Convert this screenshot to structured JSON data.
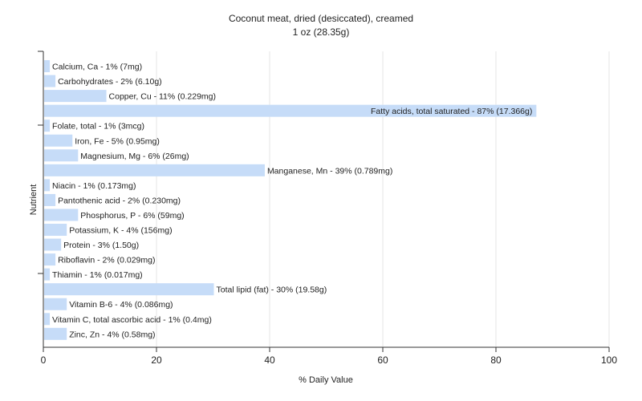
{
  "chart_data": {
    "type": "bar",
    "orientation": "horizontal",
    "title": "Coconut meat, dried (desiccated), creamed",
    "subtitle": "1 oz (28.35g)",
    "xlabel": "% Daily Value",
    "ylabel": "Nutrient",
    "xlim": [
      0,
      100
    ],
    "xticks": [
      0,
      20,
      40,
      60,
      80,
      100
    ],
    "grid": true,
    "bar_color": "#c6dcf8",
    "categories": [
      "Calcium, Ca",
      "Carbohydrates",
      "Copper, Cu",
      "Fatty acids, total saturated",
      "Folate, total",
      "Iron, Fe",
      "Magnesium, Mg",
      "Manganese, Mn",
      "Niacin",
      "Pantothenic acid",
      "Phosphorus, P",
      "Potassium, K",
      "Protein",
      "Riboflavin",
      "Thiamin",
      "Total lipid (fat)",
      "Vitamin B-6",
      "Vitamin C, total ascorbic acid",
      "Zinc, Zn"
    ],
    "values": [
      1,
      2,
      11,
      87,
      1,
      5,
      6,
      39,
      1,
      2,
      6,
      4,
      3,
      2,
      1,
      30,
      4,
      1,
      4
    ],
    "labels": [
      "Calcium, Ca - 1% (7mg)",
      "Carbohydrates - 2% (6.10g)",
      "Copper, Cu - 11% (0.229mg)",
      "Fatty acids, total saturated - 87% (17.366g)",
      "Folate, total - 1% (3mcg)",
      "Iron, Fe - 5% (0.95mg)",
      "Magnesium, Mg - 6% (26mg)",
      "Manganese, Mn - 39% (0.789mg)",
      "Niacin - 1% (0.173mg)",
      "Pantothenic acid - 2% (0.230mg)",
      "Phosphorus, P - 6% (59mg)",
      "Potassium, K - 4% (156mg)",
      "Protein - 3% (1.50g)",
      "Riboflavin - 2% (0.029mg)",
      "Thiamin - 1% (0.017mg)",
      "Total lipid (fat) - 30% (19.58g)",
      "Vitamin B-6 - 4% (0.086mg)",
      "Vitamin C, total ascorbic acid - 1% (0.4mg)",
      "Zinc, Zn - 4% (0.58mg)"
    ]
  }
}
